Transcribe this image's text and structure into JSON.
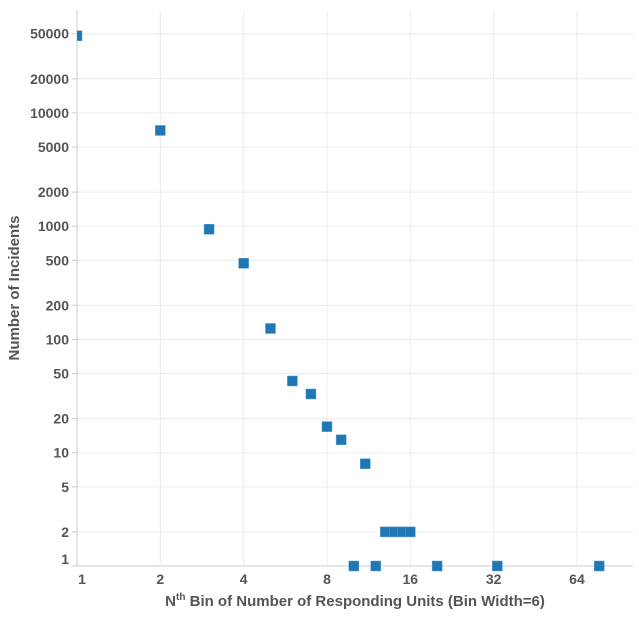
{
  "chart_data": {
    "type": "scatter",
    "title": "",
    "xlabel_prefix": "N",
    "xlabel_sup": "th",
    "xlabel_rest": " Bin of Number of Responding Units (Bin Width=6)",
    "ylabel": "Number of Incidents",
    "xscale": "log2",
    "yscale": "log10",
    "xlim": [
      1,
      102
    ],
    "ylim": [
      1,
      81000
    ],
    "xticks": [
      1,
      2,
      4,
      8,
      16,
      32,
      64
    ],
    "yticks": [
      1,
      2,
      5,
      10,
      20,
      50,
      100,
      200,
      500,
      1000,
      2000,
      5000,
      10000,
      20000,
      50000
    ],
    "grid": true,
    "color": "#1f77b4",
    "points": [
      {
        "x": 1,
        "y": 48000
      },
      {
        "x": 2,
        "y": 7000
      },
      {
        "x": 3,
        "y": 940
      },
      {
        "x": 4,
        "y": 470
      },
      {
        "x": 5,
        "y": 125
      },
      {
        "x": 6,
        "y": 43
      },
      {
        "x": 7,
        "y": 33
      },
      {
        "x": 8,
        "y": 17
      },
      {
        "x": 9,
        "y": 13
      },
      {
        "x": 10,
        "y": 1
      },
      {
        "x": 11,
        "y": 8
      },
      {
        "x": 12,
        "y": 1
      },
      {
        "x": 13,
        "y": 2
      },
      {
        "x": 14,
        "y": 2
      },
      {
        "x": 15,
        "y": 2
      },
      {
        "x": 16,
        "y": 2
      },
      {
        "x": 20,
        "y": 1
      },
      {
        "x": 33,
        "y": 1
      },
      {
        "x": 77,
        "y": 1
      }
    ]
  }
}
